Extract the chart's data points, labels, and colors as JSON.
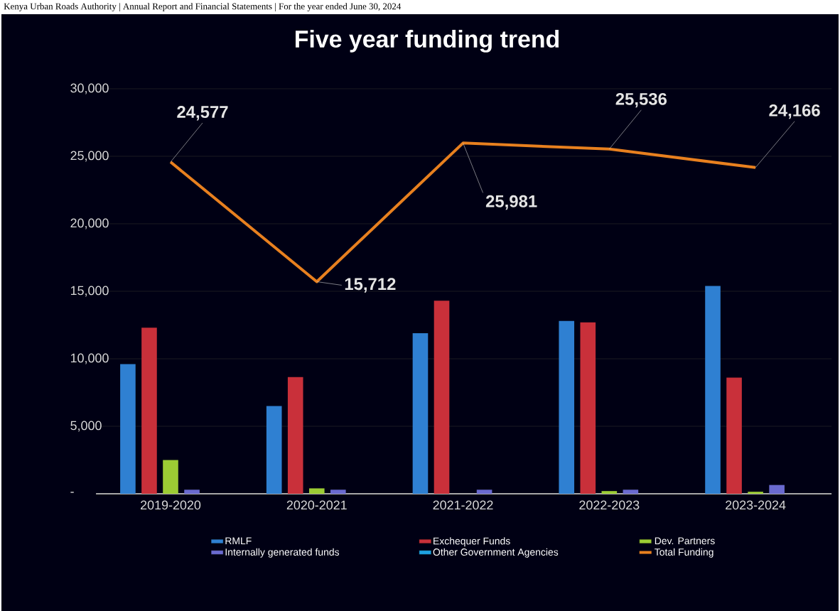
{
  "chart_data": {
    "type": "bar",
    "title": "Five year funding trend",
    "annotations": [
      "Kenya Urban Roads Authority | Annual Report and Financial Statements | For the year ended June 30, 2024"
    ],
    "categories": [
      "2019-2020",
      "2020-2021",
      "2021-2022",
      "2022-2023",
      "2023-2024"
    ],
    "series": [
      {
        "name": "RMLF",
        "color": "#2f80d2",
        "values": [
          9600,
          6500,
          11900,
          12800,
          15400
        ]
      },
      {
        "name": "Exchequer Funds",
        "color": "#c9303a",
        "values": [
          12300,
          8640,
          14300,
          12700,
          8600
        ]
      },
      {
        "name": "Dev. Partners",
        "color": "#9ccc34",
        "values": [
          2500,
          400,
          null,
          200,
          150
        ]
      },
      {
        "name": "Internally generated funds",
        "color": "#6a6ad0",
        "values": [
          300,
          300,
          300,
          300,
          650
        ]
      },
      {
        "name": "Other Government Agencies",
        "color": "#1ea2e2",
        "values": [
          null,
          null,
          null,
          null,
          null
        ]
      },
      {
        "name": "Total Funding",
        "type": "line",
        "color": "#e8801f",
        "values": [
          24577,
          15712,
          25981,
          25536,
          24166
        ],
        "value_labels": [
          "24,577",
          "15,712",
          "25,981",
          "25,536",
          "24,166"
        ]
      }
    ],
    "ylim": [
      0,
      30000
    ],
    "yticks": [
      {
        "value": 0,
        "label": "-"
      },
      {
        "value": 5000,
        "label": "5,000"
      },
      {
        "value": 10000,
        "label": "10,000"
      },
      {
        "value": 15000,
        "label": "15,000"
      },
      {
        "value": 20000,
        "label": "20,000"
      },
      {
        "value": 25000,
        "label": "25,000"
      },
      {
        "value": 30000,
        "label": "30,000"
      }
    ],
    "grid": "y",
    "legend": "bottom",
    "marker": "none",
    "line_style": "solid"
  }
}
